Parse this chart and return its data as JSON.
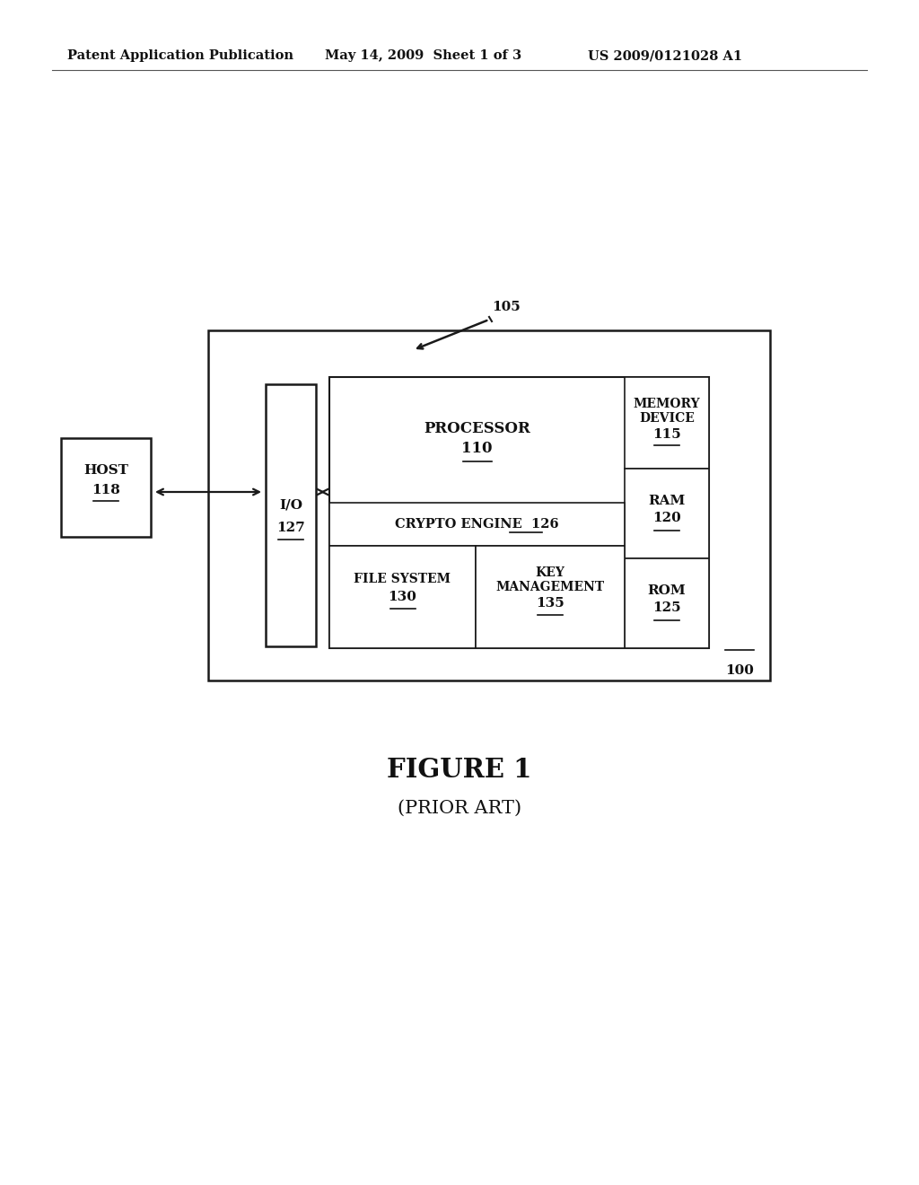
{
  "bg_color": "#ffffff",
  "header_left": "Patent Application Publication",
  "header_mid": "May 14, 2009  Sheet 1 of 3",
  "header_right": "US 2009/0121028 A1",
  "figure_label": "FIGURE 1",
  "figure_sublabel": "(PRIOR ART)",
  "label_105": "105",
  "label_100": "100",
  "label_host": "HOST",
  "label_host_num": "118",
  "label_io": "I/O",
  "label_io_num": "127",
  "label_processor": "PROCESSOR",
  "label_processor_num": "110",
  "label_crypto": "CRYPTO ENGINE  126",
  "label_memory_device_1": "MEMORY",
  "label_memory_device_2": "DEVICE",
  "label_memory_num": "115",
  "label_ram": "RAM",
  "label_ram_num": "120",
  "label_rom": "ROM",
  "label_rom_num": "125",
  "label_filesystem": "FILE SYSTEM",
  "label_filesystem_num": "130",
  "label_keymgmt_1": "KEY",
  "label_keymgmt_2": "MANAGEMENT",
  "label_keymgmt_num": "135"
}
